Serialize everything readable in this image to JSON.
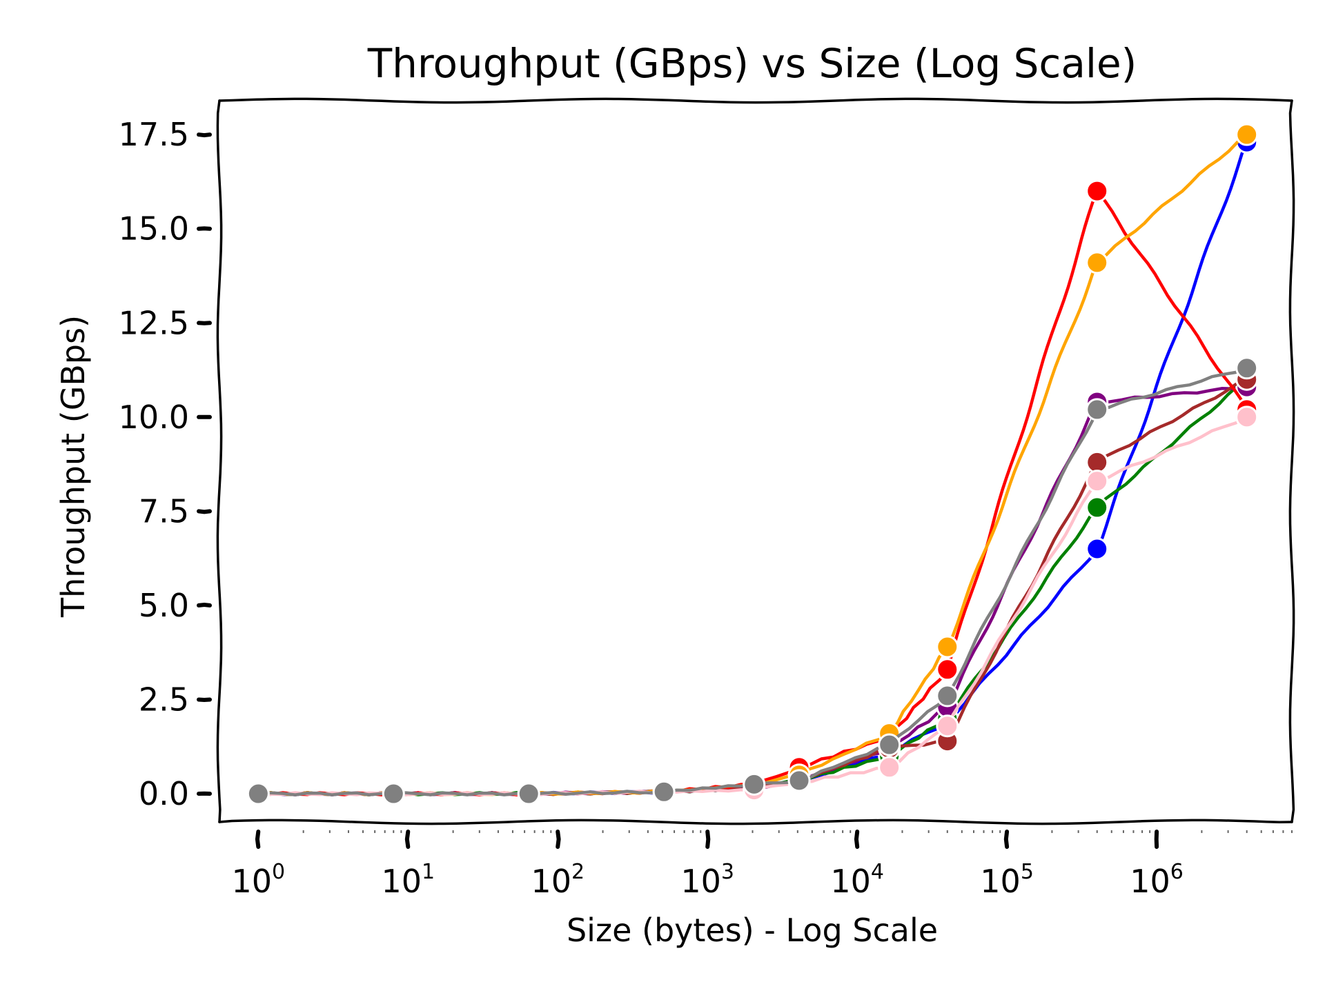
{
  "chart_data": {
    "type": "line",
    "title": "Throughput (GBps) vs Size (Log Scale)",
    "xlabel": "Size (bytes) - Log Scale",
    "ylabel": "Throughput (GBps)",
    "x_scale": "log",
    "xlim": [
      0.55,
      8000000
    ],
    "ylim": [
      -0.75,
      18.4
    ],
    "x_ticks": [
      {
        "base": "10",
        "exp": "0",
        "value": 1
      },
      {
        "base": "10",
        "exp": "1",
        "value": 10
      },
      {
        "base": "10",
        "exp": "2",
        "value": 100
      },
      {
        "base": "10",
        "exp": "3",
        "value": 1000
      },
      {
        "base": "10",
        "exp": "4",
        "value": 10000
      },
      {
        "base": "10",
        "exp": "5",
        "value": 100000
      },
      {
        "base": "10",
        "exp": "6",
        "value": 1000000
      }
    ],
    "y_ticks": [
      {
        "label": "0.0",
        "value": 0
      },
      {
        "label": "2.5",
        "value": 2.5
      },
      {
        "label": "5.0",
        "value": 5
      },
      {
        "label": "7.5",
        "value": 7.5
      },
      {
        "label": "10.0",
        "value": 10
      },
      {
        "label": "12.5",
        "value": 12.5
      },
      {
        "label": "15.0",
        "value": 15
      },
      {
        "label": "17.5",
        "value": 17.5
      }
    ],
    "grid": false,
    "legend": "none",
    "series": [
      {
        "color": "#0000ff",
        "x": [
          1,
          8,
          64,
          512,
          2048,
          4096,
          16384,
          40000,
          400000,
          4000000
        ],
        "y": [
          0,
          0,
          0,
          0.05,
          0.15,
          0.3,
          1.1,
          1.9,
          6.5,
          17.3
        ]
      },
      {
        "color": "#008000",
        "x": [
          1,
          8,
          64,
          512,
          2048,
          4096,
          16384,
          40000,
          400000,
          4000000
        ],
        "y": [
          0,
          0,
          0,
          0.05,
          0.15,
          0.35,
          1.0,
          2.0,
          7.6,
          11.0
        ]
      },
      {
        "color": "#800080",
        "x": [
          1,
          8,
          64,
          512,
          2048,
          4096,
          16384,
          40000,
          400000,
          4000000
        ],
        "y": [
          0,
          0,
          0,
          0.05,
          0.15,
          0.35,
          1.2,
          2.3,
          10.4,
          10.8
        ]
      },
      {
        "color": "#a52a2a",
        "x": [
          1,
          8,
          64,
          512,
          2048,
          4096,
          16384,
          40000,
          400000,
          4000000
        ],
        "y": [
          0,
          0,
          0,
          0.05,
          0.15,
          0.35,
          1.2,
          1.4,
          8.8,
          11.0
        ]
      },
      {
        "color": "#ff0000",
        "x": [
          1,
          8,
          64,
          512,
          2048,
          4096,
          16384,
          40000,
          400000,
          4000000
        ],
        "y": [
          0,
          0,
          0,
          0.05,
          0.25,
          0.7,
          1.5,
          3.3,
          16.0,
          10.2
        ]
      },
      {
        "color": "#ffa500",
        "x": [
          1,
          8,
          64,
          512,
          2048,
          4096,
          16384,
          40000,
          400000,
          4000000
        ],
        "y": [
          0,
          0,
          0,
          0.05,
          0.25,
          0.5,
          1.6,
          3.9,
          14.1,
          17.5
        ]
      },
      {
        "color": "#ffc0cb",
        "x": [
          1,
          8,
          64,
          512,
          2048,
          4096,
          16384,
          40000,
          400000,
          4000000
        ],
        "y": [
          0,
          0,
          0,
          0.05,
          0.1,
          0.3,
          0.7,
          1.8,
          8.3,
          10.0
        ]
      },
      {
        "color": "#808080",
        "x": [
          1,
          8,
          64,
          512,
          2048,
          4096,
          16384,
          40000,
          400000,
          4000000
        ],
        "y": [
          0,
          0,
          0,
          0.05,
          0.25,
          0.35,
          1.3,
          2.6,
          10.2,
          11.3
        ]
      }
    ]
  }
}
